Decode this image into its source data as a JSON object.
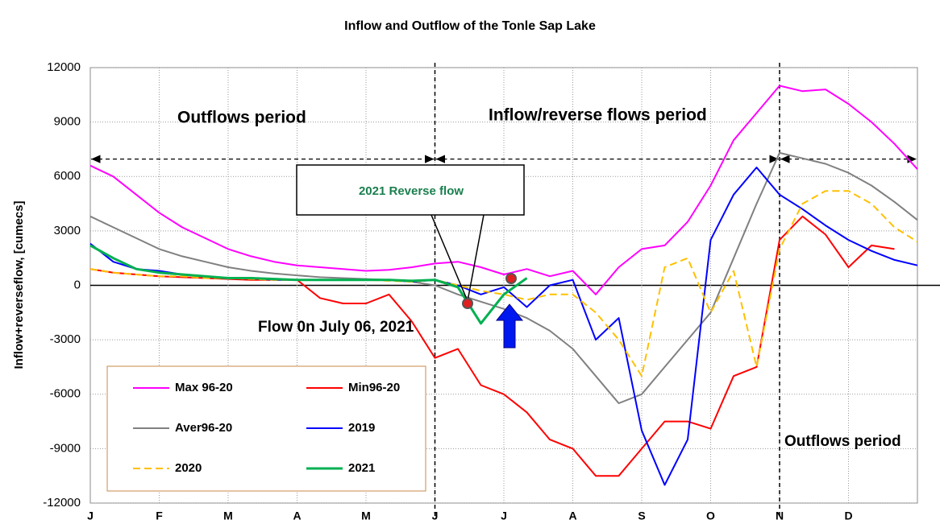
{
  "chart_data": {
    "type": "line",
    "title": "Inflow and Outflow of the Tonle Sap Lake",
    "y_label": "Inflow+reverseflow, [cumecs]",
    "annotations": [
      "Outflows period",
      "Inflow/reverse flows period",
      "2021 Reverse flow",
      "Flow 0n July 06, 2021",
      "Outflows period"
    ],
    "categories": [
      "J",
      null,
      null,
      "F",
      null,
      null,
      "M",
      null,
      null,
      "A",
      null,
      null,
      "M",
      null,
      null,
      "J",
      null,
      null,
      "J",
      null,
      null,
      "A",
      null,
      null,
      "S",
      null,
      null,
      "O",
      null,
      null,
      "N",
      null,
      null,
      "D",
      null,
      null,
      null
    ],
    "ylim": [
      -12000,
      12000
    ],
    "yticks": [
      -12000,
      -9000,
      -6000,
      -3000,
      0,
      3000,
      6000,
      9000,
      12000
    ],
    "grid": true,
    "series": [
      {
        "name": "Max 96-20",
        "color": "#ff00ff",
        "values": [
          6600,
          6000,
          5000,
          4000,
          3200,
          2600,
          2000,
          1600,
          1300,
          1100,
          1000,
          900,
          800,
          850,
          1000,
          1200,
          1300,
          1000,
          600,
          900,
          500,
          800,
          -500,
          1000,
          2000,
          2200,
          3500,
          5500,
          8000,
          9500,
          11000,
          10700,
          10800,
          10000,
          9000,
          7800,
          6400
        ]
      },
      {
        "name": "Min96-20",
        "color": "#ff0000",
        "values": [
          900,
          700,
          600,
          500,
          450,
          400,
          350,
          300,
          300,
          300,
          -700,
          -1000,
          -1000,
          -500,
          -2000,
          -4000,
          -3500,
          -5500,
          -6000,
          -7000,
          -8500,
          -9000,
          -10500,
          -10500,
          -9000,
          -7500,
          -7500,
          -7900,
          -5000,
          -4500,
          2500,
          3800,
          2800,
          1000,
          2200,
          2000,
          null
        ]
      },
      {
        "name": "Aver96-20",
        "color": "#808080",
        "values": [
          3800,
          3200,
          2600,
          2000,
          1600,
          1300,
          1000,
          800,
          650,
          550,
          450,
          400,
          350,
          300,
          200,
          0,
          -500,
          -900,
          -1300,
          -1800,
          -2500,
          -3500,
          -5000,
          -6500,
          -6000,
          -4500,
          -3000,
          -1500,
          1500,
          4500,
          7300,
          7000,
          6700,
          6200,
          5500,
          4600,
          3600
        ]
      },
      {
        "name": "2019",
        "color": "#0000ff",
        "values": [
          2300,
          1300,
          900,
          800,
          600,
          500,
          400,
          400,
          300,
          300,
          300,
          300,
          300,
          300,
          200,
          300,
          0,
          -500,
          -100,
          -1200,
          0,
          300,
          -3000,
          -1800,
          -8000,
          -11000,
          -8500,
          2500,
          5000,
          6500,
          5000,
          4200,
          3300,
          2500,
          1900,
          1400,
          1100
        ]
      },
      {
        "name": "2020",
        "color": "#ffc000",
        "dashed": true,
        "values": [
          900,
          700,
          600,
          500,
          500,
          400,
          400,
          350,
          300,
          300,
          300,
          300,
          300,
          250,
          200,
          300,
          0,
          -300,
          -500,
          -800,
          -500,
          -500,
          -1500,
          -3000,
          -5000,
          1000,
          1500,
          -1500,
          800,
          -4500,
          2000,
          4500,
          5200,
          5200,
          4500,
          3200,
          2400
        ]
      },
      {
        "name": "2021",
        "color": "#00b050",
        "width": 3,
        "values": [
          2200,
          1500,
          900,
          700,
          600,
          500,
          400,
          400,
          350,
          300,
          300,
          300,
          300,
          300,
          250,
          300,
          -100,
          -2100,
          -500,
          400,
          null,
          null,
          null,
          null,
          null,
          null,
          null,
          null,
          null,
          null,
          null,
          null,
          null,
          null,
          null,
          null,
          null
        ]
      }
    ]
  }
}
